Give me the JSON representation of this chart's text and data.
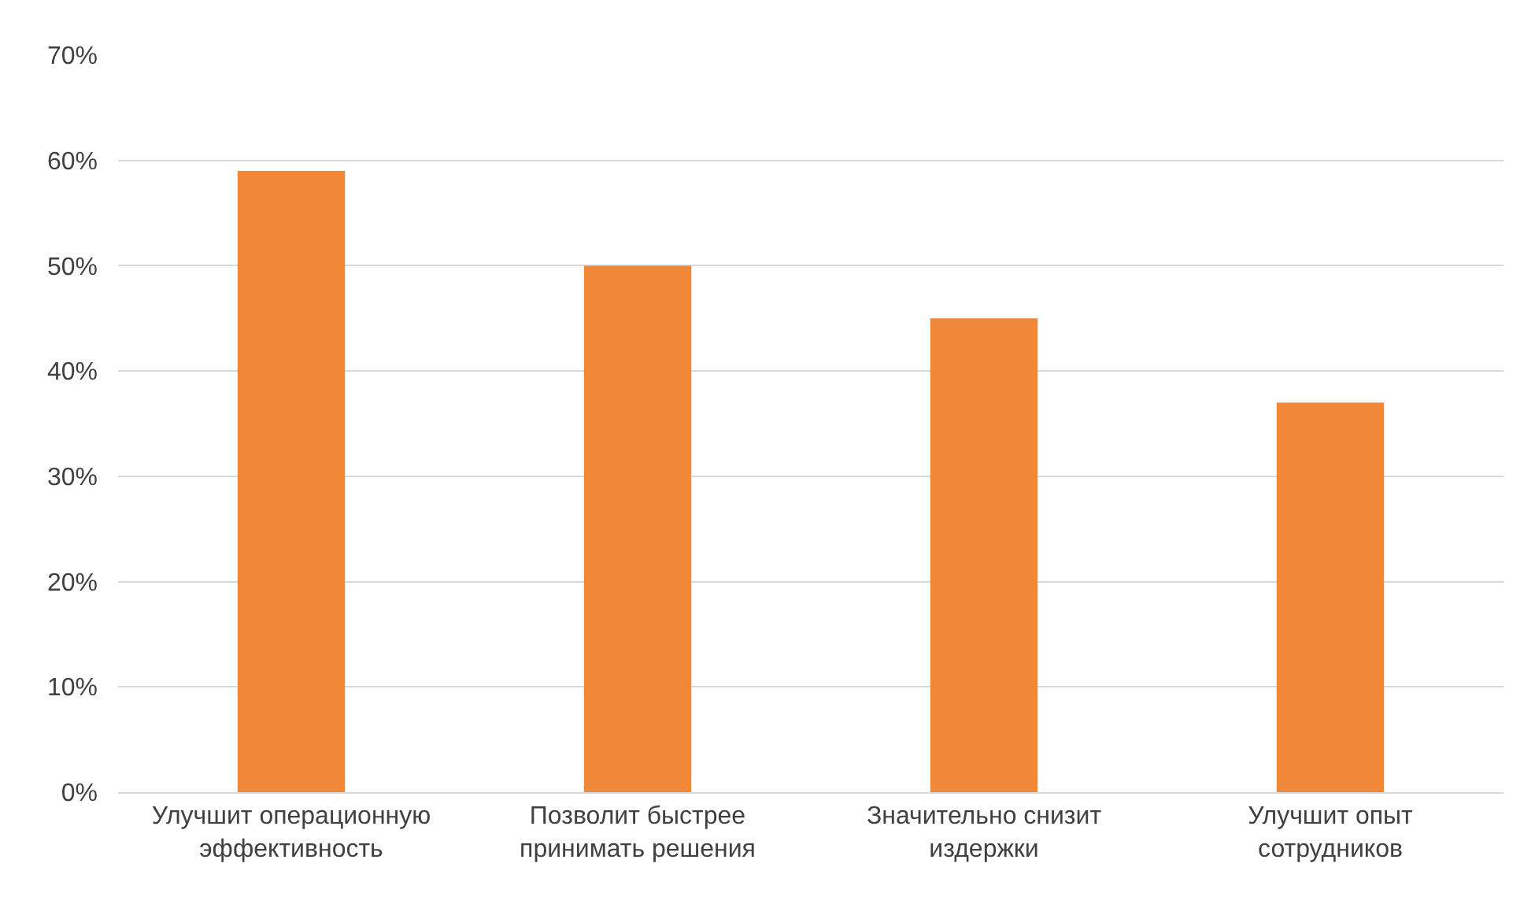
{
  "chart_data": {
    "type": "bar",
    "categories": [
      "Улучшит операционную эффективность",
      "Позволит быстрее принимать решения",
      "Значительно снизит издержки",
      "Улучшит опыт сотрудников"
    ],
    "values": [
      59,
      50,
      45,
      37
    ],
    "color": "#f0883a",
    "ylim": [
      0,
      70
    ],
    "yticks": [
      {
        "value": 0,
        "label": "0%"
      },
      {
        "value": 10,
        "label": "10%"
      },
      {
        "value": 20,
        "label": "20%"
      },
      {
        "value": 30,
        "label": "30%"
      },
      {
        "value": 40,
        "label": "40%"
      },
      {
        "value": 50,
        "label": "50%"
      },
      {
        "value": 60,
        "label": "60%"
      },
      {
        "value": 70,
        "label": "70%"
      }
    ],
    "grid": "y"
  }
}
